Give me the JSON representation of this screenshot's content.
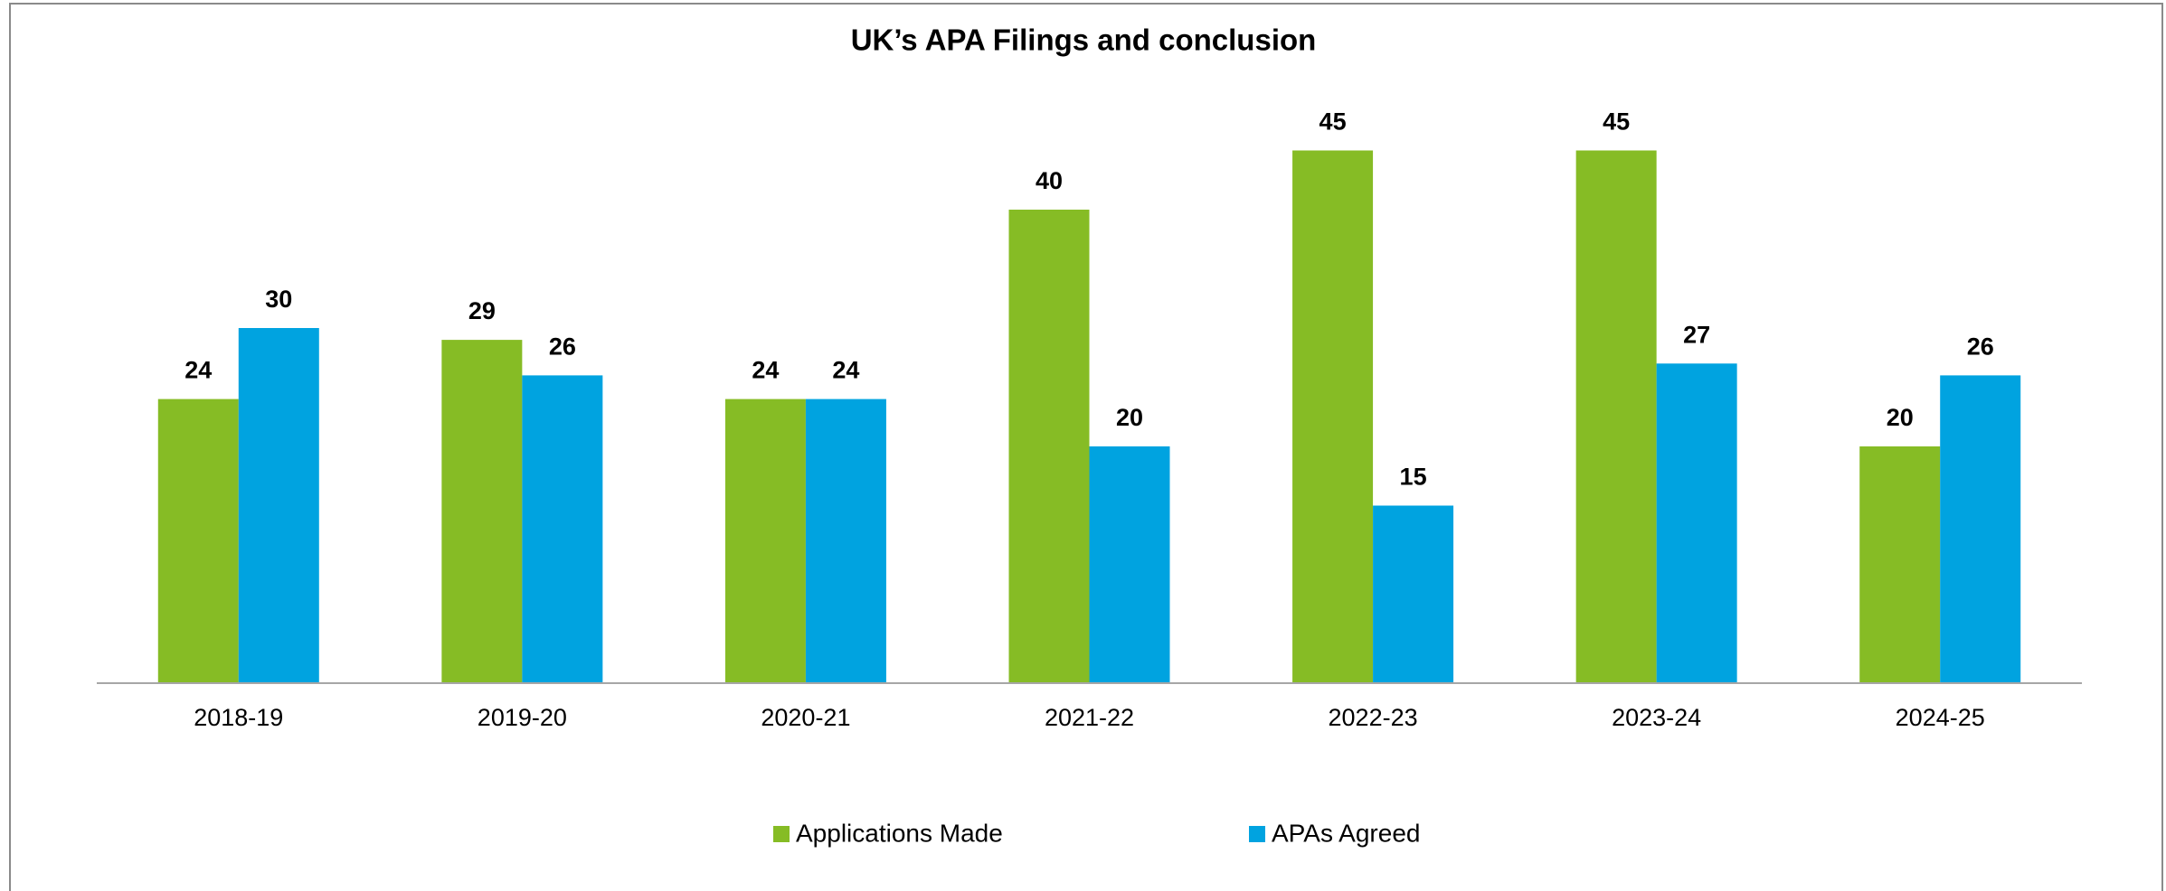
{
  "chart_data": {
    "type": "bar",
    "title": "UK’s APA Filings and conclusion",
    "categories": [
      "2018-19",
      "2019-20",
      "2020-21",
      "2021-22",
      "2022-23",
      "2023-24",
      "2024-25"
    ],
    "series": [
      {
        "name": "Applications Made",
        "color": "#86bc25",
        "values": [
          24,
          29,
          24,
          40,
          45,
          45,
          20
        ]
      },
      {
        "name": "APAs Agreed",
        "color": "#00a3e0",
        "values": [
          30,
          26,
          24,
          20,
          15,
          27,
          26
        ]
      }
    ],
    "ylim": [
      0,
      50
    ],
    "legend": "bottom"
  }
}
